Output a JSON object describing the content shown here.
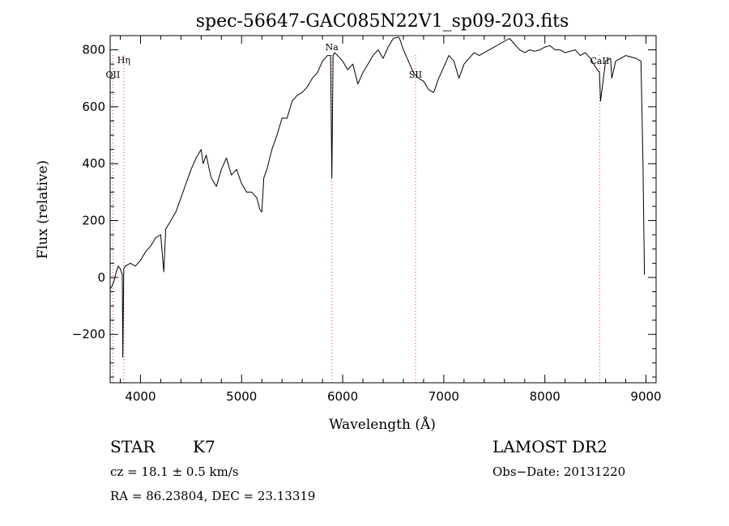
{
  "chart_data": {
    "type": "line",
    "title": "spec-56647-GAC085N22V1_sp09-203.fits",
    "xlabel": "Wavelength (Å)",
    "ylabel": "Flux (relative)",
    "xlim": [
      3700,
      9100
    ],
    "ylim": [
      -370,
      850
    ],
    "xticks": [
      4000,
      5000,
      6000,
      7000,
      8000,
      9000
    ],
    "yticks": [
      -200,
      0,
      200,
      400,
      600,
      800
    ],
    "series": [
      {
        "x": [
          3700,
          3720,
          3740,
          3760,
          3780,
          3800,
          3820,
          3825,
          3835,
          3850,
          3900,
          3950,
          4000,
          4050,
          4100,
          4150,
          4200,
          4230,
          4250,
          4300,
          4350,
          4400,
          4450,
          4500,
          4550,
          4600,
          4620,
          4650,
          4680,
          4700,
          4750,
          4800,
          4850,
          4900,
          4950,
          5000,
          5050,
          5100,
          5150,
          5180,
          5200,
          5220,
          5250,
          5300,
          5350,
          5400,
          5450,
          5500,
          5550,
          5600,
          5650,
          5700,
          5750,
          5800,
          5850,
          5880,
          5893,
          5905,
          5920,
          5950,
          6000,
          6050,
          6100,
          6150,
          6200,
          6250,
          6300,
          6350,
          6400,
          6450,
          6500,
          6550,
          6563,
          6600,
          6650,
          6700,
          6750,
          6800,
          6850,
          6900,
          6950,
          7000,
          7050,
          7100,
          7150,
          7200,
          7250,
          7300,
          7350,
          7400,
          7450,
          7500,
          7550,
          7600,
          7650,
          7700,
          7750,
          7800,
          7850,
          7900,
          7950,
          8000,
          8050,
          8100,
          8150,
          8200,
          8250,
          8300,
          8350,
          8400,
          8450,
          8500,
          8540,
          8550,
          8600,
          8650,
          8662,
          8700,
          8750,
          8800,
          8850,
          8900,
          8950,
          8970,
          8985
        ],
        "y": [
          -40,
          -30,
          -10,
          20,
          40,
          30,
          10,
          -280,
          30,
          40,
          50,
          40,
          60,
          90,
          110,
          140,
          150,
          20,
          170,
          200,
          230,
          280,
          330,
          380,
          420,
          450,
          400,
          430,
          380,
          350,
          320,
          380,
          420,
          360,
          380,
          330,
          300,
          300,
          280,
          240,
          230,
          350,
          380,
          450,
          500,
          560,
          560,
          620,
          640,
          650,
          670,
          700,
          720,
          760,
          780,
          780,
          350,
          780,
          790,
          780,
          760,
          730,
          750,
          680,
          720,
          750,
          780,
          800,
          770,
          810,
          840,
          845,
          840,
          800,
          760,
          720,
          700,
          690,
          660,
          650,
          700,
          740,
          780,
          760,
          700,
          750,
          770,
          790,
          780,
          790,
          800,
          810,
          820,
          830,
          840,
          820,
          800,
          790,
          800,
          795,
          800,
          810,
          815,
          800,
          800,
          790,
          795,
          800,
          780,
          790,
          770,
          740,
          720,
          620,
          760,
          770,
          700,
          760,
          770,
          780,
          775,
          770,
          760,
          400,
          10
        ]
      }
    ],
    "lines": [
      {
        "x": 3727,
        "label": "OII"
      },
      {
        "x": 3835,
        "label": "Hη"
      },
      {
        "x": 5893,
        "label": "Na"
      },
      {
        "x": 6720,
        "label": "SII"
      },
      {
        "x": 8542,
        "label": "CaII"
      }
    ]
  },
  "info": {
    "object_class": "STAR",
    "subclass": "K7",
    "survey": "LAMOST DR2",
    "redshift": "cz = 18.1 ± 0.5 km/s",
    "obs_date": "Obs−Date: 20131220",
    "coords": "RA =  86.23804, DEC =  23.13319"
  },
  "colors": {
    "axis": "#000000",
    "spectrum": "#000000",
    "line_marker": "#d04040"
  }
}
